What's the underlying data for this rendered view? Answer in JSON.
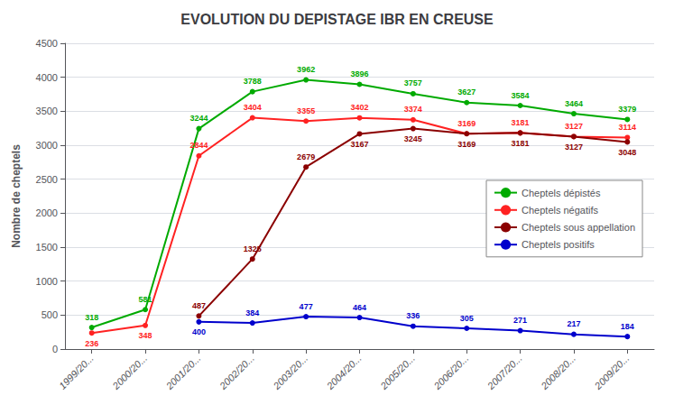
{
  "chart_data": {
    "type": "line",
    "title": "EVOLUTION DU DEPISTAGE IBR EN CREUSE",
    "ylabel": "Nombre de cheptels",
    "categories": [
      "1999/20...",
      "2000/20...",
      "2001/20...",
      "2002/20...",
      "2003/20...",
      "2004/20...",
      "2005/20...",
      "2006/20...",
      "2007/20...",
      "2008/20...",
      "2009/20..."
    ],
    "series": [
      {
        "name": "Cheptels dépistés",
        "color": "#00aa00",
        "marker": "circle",
        "values": [
          318,
          581,
          3244,
          3788,
          3962,
          3896,
          3757,
          3627,
          3584,
          3464,
          3379
        ]
      },
      {
        "name": "Cheptels négatifs",
        "color": "#ff2222",
        "marker": "circle",
        "values": [
          236,
          348,
          2844,
          3404,
          3355,
          3402,
          3374,
          3169,
          3181,
          3127,
          3114
        ]
      },
      {
        "name": "Cheptels sous appellation",
        "color": "#8b0000",
        "marker": "circle",
        "values": [
          null,
          null,
          487,
          1325,
          2679,
          3167,
          3245,
          3169,
          3181,
          3127,
          3048
        ]
      },
      {
        "name": "Cheptels positifs",
        "color": "#0000cc",
        "marker": "circle",
        "values": [
          null,
          null,
          400,
          384,
          477,
          464,
          336,
          305,
          271,
          217,
          184
        ]
      }
    ],
    "ylim": [
      0,
      4500
    ],
    "yticks": [
      0,
      500,
      1000,
      1500,
      2000,
      2500,
      3000,
      3500,
      4000,
      4500
    ],
    "grid": true,
    "legend": "right",
    "data_labels": true
  }
}
